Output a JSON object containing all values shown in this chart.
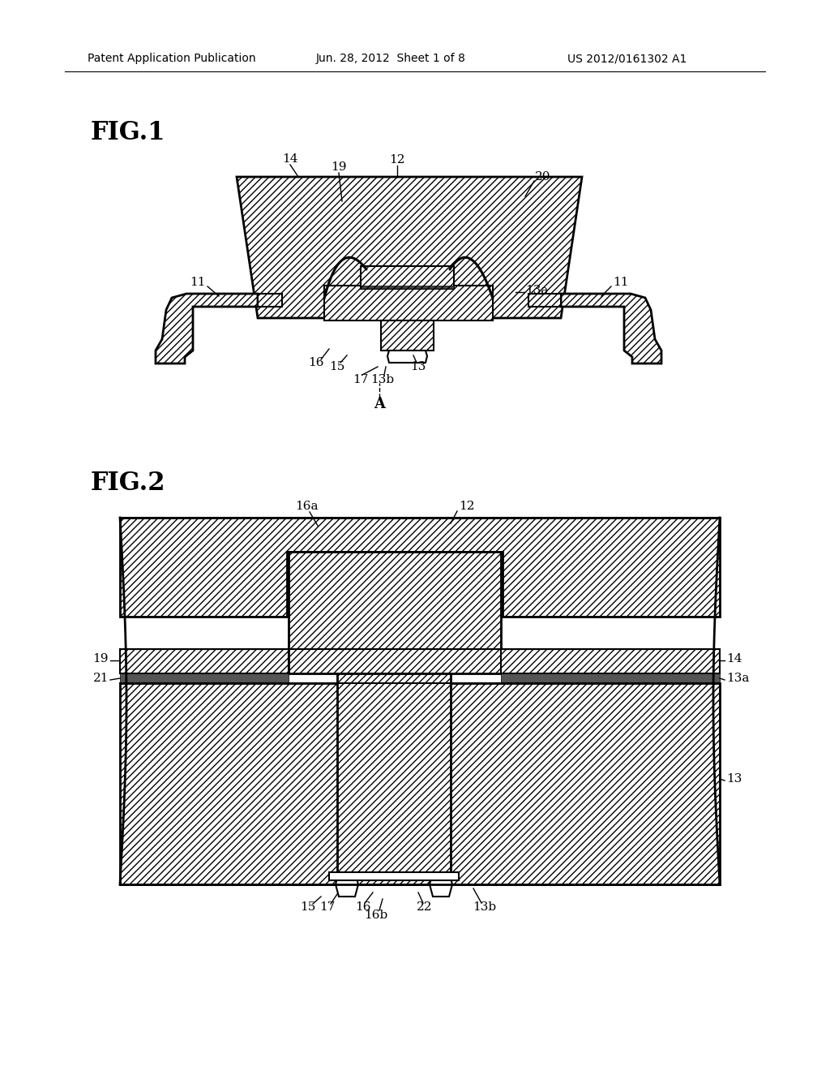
{
  "bg_color": "#ffffff",
  "header_left": "Patent Application Publication",
  "header_mid": "Jun. 28, 2012  Sheet 1 of 8",
  "header_right": "US 2012/0161302 A1",
  "fig1_label": "FIG.1",
  "fig2_label": "FIG.2",
  "line_color": "#000000"
}
